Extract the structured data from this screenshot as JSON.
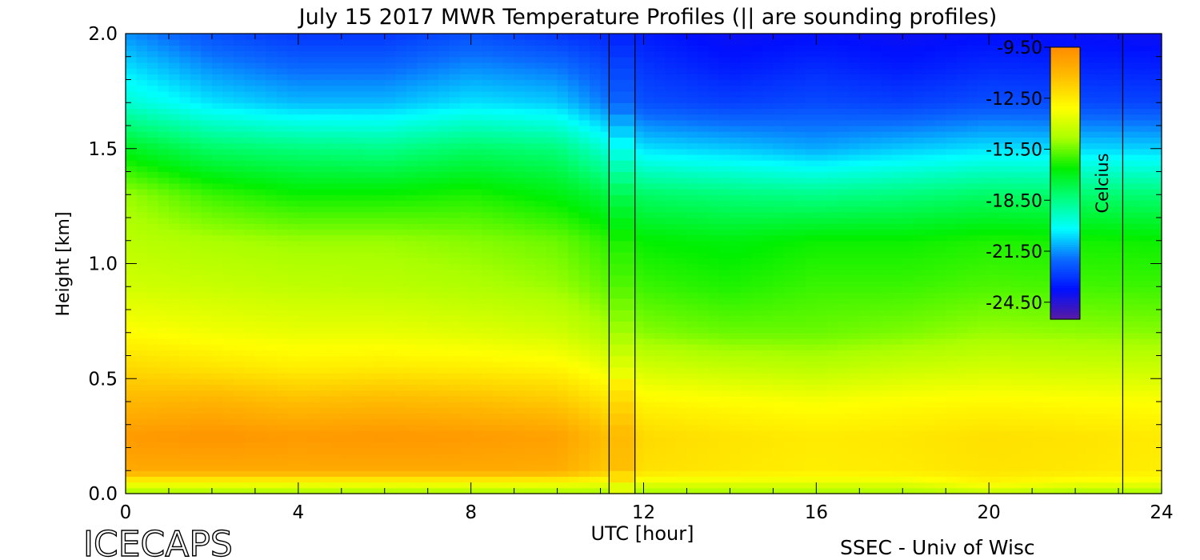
{
  "chart_data": {
    "type": "heatmap",
    "title": "July 15 2017 MWR Temperature Profiles (|| are sounding profiles)",
    "xlabel": "UTC [hour]",
    "ylabel": "Height [km]",
    "xlim": [
      0,
      24
    ],
    "ylim": [
      0,
      2.0
    ],
    "x_ticks": [
      "0",
      "4",
      "8",
      "12",
      "16",
      "20",
      "24"
    ],
    "y_ticks": [
      "0.0",
      "0.5",
      "1.0",
      "1.5",
      "2.0"
    ],
    "colorbar": {
      "label": "Celcius",
      "range": [
        -25.5,
        -9.5
      ],
      "tick_labels": [
        "-9.50",
        "-12.50",
        "-15.50",
        "-18.50",
        "-21.50",
        "-24.50"
      ],
      "tick_values": [
        -9.5,
        -12.5,
        -15.5,
        -18.5,
        -21.5,
        -24.5
      ],
      "colors": [
        "#5a1aa0",
        "#0010ff",
        "#0a6cff",
        "#00ffff",
        "#00ff80",
        "#00f000",
        "#aaff00",
        "#ffff00",
        "#ffc000",
        "#ff8c00"
      ]
    },
    "sounding_times_utc": [
      11.2,
      11.8,
      23.1
    ],
    "data_gap_utc": [
      11.2,
      11.8
    ],
    "profile_hours": [
      0,
      2,
      4,
      6,
      8,
      10,
      12,
      14,
      16,
      18,
      20,
      22,
      24
    ],
    "heights_km": [
      0.0,
      0.05,
      0.1,
      0.25,
      0.4,
      0.55,
      0.7,
      0.9,
      1.1,
      1.3,
      1.5,
      1.7,
      1.85,
      2.0
    ],
    "temperature_c": [
      [
        -15.0,
        -13.0,
        -10.5,
        -10.0,
        -11.0,
        -12.0,
        -13.0,
        -14.0,
        -14.5,
        -15.0,
        -17.0,
        -19.5,
        -20.5,
        -21.5
      ],
      [
        -15.0,
        -13.0,
        -10.5,
        -9.8,
        -10.8,
        -12.3,
        -13.3,
        -14.2,
        -14.8,
        -16.0,
        -18.0,
        -20.5,
        -21.5,
        -22.5
      ],
      [
        -15.0,
        -13.0,
        -10.5,
        -10.0,
        -11.2,
        -12.6,
        -13.5,
        -14.4,
        -15.0,
        -16.5,
        -18.3,
        -21.0,
        -22.0,
        -23.0
      ],
      [
        -15.0,
        -13.0,
        -10.5,
        -9.9,
        -11.0,
        -12.5,
        -13.5,
        -14.5,
        -15.0,
        -16.5,
        -18.5,
        -21.0,
        -22.0,
        -23.0
      ],
      [
        -15.0,
        -13.0,
        -10.5,
        -10.0,
        -11.2,
        -12.6,
        -13.7,
        -14.7,
        -15.2,
        -16.3,
        -18.0,
        -20.5,
        -21.5,
        -22.5
      ],
      [
        -15.0,
        -13.0,
        -10.6,
        -10.2,
        -11.5,
        -12.8,
        -14.0,
        -15.0,
        -15.5,
        -16.8,
        -18.3,
        -20.8,
        -21.8,
        -23.0
      ],
      [
        -15.0,
        -13.5,
        -12.2,
        -12.0,
        -12.8,
        -14.0,
        -15.2,
        -16.0,
        -16.6,
        -18.0,
        -20.5,
        -22.5,
        -23.0,
        -23.5
      ],
      [
        -15.0,
        -13.5,
        -12.4,
        -12.3,
        -13.0,
        -14.3,
        -15.5,
        -16.3,
        -16.8,
        -18.3,
        -20.8,
        -22.8,
        -23.5,
        -24.0
      ],
      [
        -15.0,
        -13.5,
        -12.6,
        -12.5,
        -13.2,
        -14.5,
        -15.5,
        -16.0,
        -16.5,
        -18.5,
        -21.2,
        -22.6,
        -23.2,
        -23.8
      ],
      [
        -15.0,
        -13.5,
        -12.5,
        -12.4,
        -13.0,
        -14.2,
        -15.3,
        -16.0,
        -16.5,
        -18.3,
        -20.8,
        -22.8,
        -23.5,
        -24.0
      ],
      [
        -14.5,
        -12.8,
        -12.3,
        -12.2,
        -12.9,
        -14.0,
        -15.0,
        -15.8,
        -16.3,
        -18.0,
        -20.5,
        -22.5,
        -23.2,
        -23.8
      ],
      [
        -15.0,
        -13.2,
        -12.4,
        -12.3,
        -13.0,
        -14.1,
        -15.1,
        -15.9,
        -16.4,
        -18.1,
        -20.6,
        -22.6,
        -23.3,
        -23.9
      ],
      [
        -15.0,
        -13.3,
        -12.6,
        -12.5,
        -13.1,
        -14.2,
        -15.2,
        -16.0,
        -16.5,
        -18.2,
        -20.7,
        -22.7,
        -23.4,
        -24.0
      ]
    ]
  },
  "branding": {
    "left_logo": "ICECAPS",
    "right_credit": "SSEC - Univ of Wisc"
  }
}
